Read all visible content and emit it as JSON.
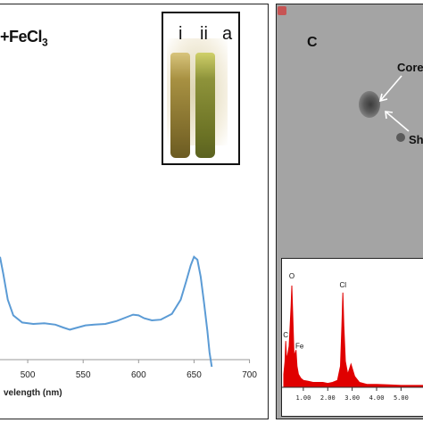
{
  "left_panel": {
    "title_prefix": "+FeCl",
    "title_subscript": "3",
    "inset_photo": {
      "label_i": "i",
      "label_ii": "ii",
      "label_a": "a"
    }
  },
  "right_panel": {
    "panel_label": "C",
    "annotation_core": "Core",
    "annotation_shell": "Sh"
  },
  "chart_data": [
    {
      "type": "line",
      "title": "",
      "xlabel": "velength (nm)",
      "ylabel": "",
      "x_ticks": [
        "500",
        "550",
        "600",
        "650",
        "700"
      ],
      "xlim": [
        475,
        710
      ],
      "series": [
        {
          "color": "#5b9bd5",
          "x": [
            475,
            478,
            482,
            487,
            495,
            505,
            515,
            525,
            532,
            538,
            545,
            552,
            560,
            570,
            580,
            590,
            595,
            600,
            605,
            612,
            620,
            630,
            638,
            643,
            647,
            650,
            653,
            656,
            659,
            662,
            664,
            666
          ],
          "y": [
            0.72,
            0.6,
            0.42,
            0.31,
            0.26,
            0.25,
            0.255,
            0.245,
            0.225,
            0.21,
            0.225,
            0.24,
            0.245,
            0.25,
            0.27,
            0.3,
            0.315,
            0.31,
            0.29,
            0.275,
            0.28,
            0.32,
            0.42,
            0.55,
            0.66,
            0.72,
            0.7,
            0.58,
            0.4,
            0.2,
            0.05,
            -0.05
          ]
        }
      ]
    },
    {
      "type": "line",
      "title": "",
      "xlabel": "",
      "ylabel": "",
      "x_ticks": [
        "1.00",
        "2.00",
        "3.00",
        "4.00",
        "5.00"
      ],
      "xlim": [
        0.2,
        5.9
      ],
      "peak_labels": [
        {
          "text": "O",
          "x": 0.53
        },
        {
          "text": "C",
          "x": 0.28
        },
        {
          "text": "Fe",
          "x": 0.7
        },
        {
          "text": "Cl",
          "x": 2.62
        }
      ],
      "series": [
        {
          "color": "#e00000",
          "x": [
            0.2,
            0.25,
            0.28,
            0.31,
            0.35,
            0.42,
            0.5,
            0.53,
            0.56,
            0.62,
            0.7,
            0.74,
            0.8,
            0.9,
            1.0,
            1.2,
            1.4,
            1.6,
            1.8,
            2.0,
            2.2,
            2.4,
            2.52,
            2.58,
            2.62,
            2.66,
            2.72,
            2.82,
            2.95,
            3.1,
            3.3,
            3.6,
            4.0,
            4.5,
            5.0,
            5.5,
            5.9
          ],
          "y": [
            0.12,
            0.25,
            0.45,
            0.3,
            0.3,
            0.4,
            0.8,
            1.0,
            0.75,
            0.3,
            0.36,
            0.2,
            0.12,
            0.08,
            0.06,
            0.05,
            0.04,
            0.04,
            0.04,
            0.03,
            0.04,
            0.06,
            0.2,
            0.6,
            0.93,
            0.6,
            0.25,
            0.12,
            0.22,
            0.1,
            0.04,
            0.02,
            0.02,
            0.015,
            0.01,
            0.01,
            0.01
          ]
        }
      ]
    }
  ]
}
